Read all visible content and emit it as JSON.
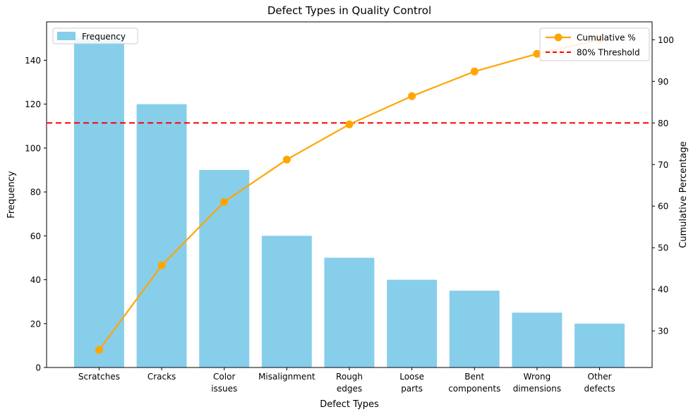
{
  "chart_data": {
    "type": "bar",
    "subtype": "pareto (bar + cumulative line)",
    "title": "Defect Types in Quality Control",
    "xlabel": "Defect Types",
    "ylabel": "Frequency",
    "y2label": "Cumulative Percentage",
    "categories": [
      "Scratches",
      "Cracks",
      "Color issues",
      "Misalignment",
      "Rough edges",
      "Loose parts",
      "Bent components",
      "Wrong dimensions",
      "Other defects"
    ],
    "tick_label_lines": [
      [
        "Scratches"
      ],
      [
        "Cracks"
      ],
      [
        "Color",
        "issues"
      ],
      [
        "Misalignment"
      ],
      [
        "Rough",
        "edges"
      ],
      [
        "Loose",
        "parts"
      ],
      [
        "Bent",
        "components"
      ],
      [
        "Wrong",
        "dimensions"
      ],
      [
        "Other",
        "defects"
      ]
    ],
    "series": [
      {
        "name": "Frequency",
        "axis": "left",
        "style": "bar",
        "values": [
          150,
          120,
          90,
          60,
          50,
          40,
          35,
          25,
          20
        ]
      },
      {
        "name": "Cumulative %",
        "axis": "right",
        "style": "line+marker",
        "values": [
          25.42,
          45.76,
          61.02,
          71.19,
          79.66,
          86.44,
          92.37,
          96.61,
          100
        ]
      }
    ],
    "threshold": {
      "value": 80,
      "label": "80% Threshold",
      "style": "dashed"
    },
    "ylim_left": [
      0,
      157.5
    ],
    "ylim_right": [
      21.2,
      104.3
    ],
    "yticks_left": [
      0,
      20,
      40,
      60,
      80,
      100,
      120,
      140
    ],
    "yticks_right": [
      30,
      40,
      50,
      60,
      70,
      80,
      90,
      100
    ],
    "grid": false,
    "legend": {
      "frequency": "Frequency",
      "cumulative": "Cumulative %",
      "threshold": "80% Threshold",
      "frequency_position": "upper left",
      "cumulative_position": "upper right"
    },
    "colors": {
      "bar": "#87CEEB",
      "line": "#FFA500",
      "threshold": "#FF0000",
      "text": "#000000",
      "spine": "#000000",
      "legend_border": "#cccccc"
    }
  }
}
